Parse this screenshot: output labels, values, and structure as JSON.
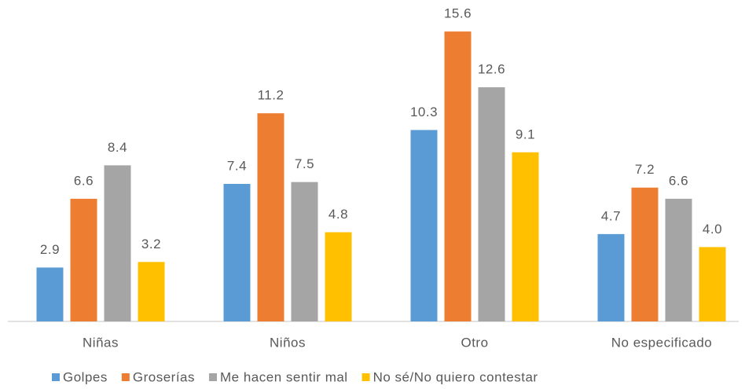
{
  "chart_data": {
    "type": "bar",
    "categories": [
      "Niñas",
      "Niños",
      "Otro",
      "No especificado"
    ],
    "series": [
      {
        "name": "Golpes",
        "color": "#5b9bd5",
        "values": [
          2.9,
          7.4,
          10.3,
          4.7
        ]
      },
      {
        "name": "Groserías",
        "color": "#ed7d31",
        "values": [
          6.6,
          11.2,
          15.6,
          7.2
        ]
      },
      {
        "name": "Me hacen sentir mal",
        "color": "#a5a5a5",
        "values": [
          8.4,
          7.5,
          12.6,
          6.6
        ]
      },
      {
        "name": "No sé/No quiero contestar",
        "color": "#ffc000",
        "values": [
          3.2,
          4.8,
          9.1,
          4.0
        ]
      }
    ],
    "value_labels": [
      [
        "2.9",
        "7.4",
        "10.3",
        "4.7"
      ],
      [
        "6.6",
        "11.2",
        "15.6",
        "7.2"
      ],
      [
        "8.4",
        "7.5",
        "12.6",
        "6.6"
      ],
      [
        "3.2",
        "4.8",
        "9.1",
        "4.0"
      ]
    ],
    "ylim": [
      0,
      17
    ],
    "grid": false,
    "legend": "bottom"
  }
}
